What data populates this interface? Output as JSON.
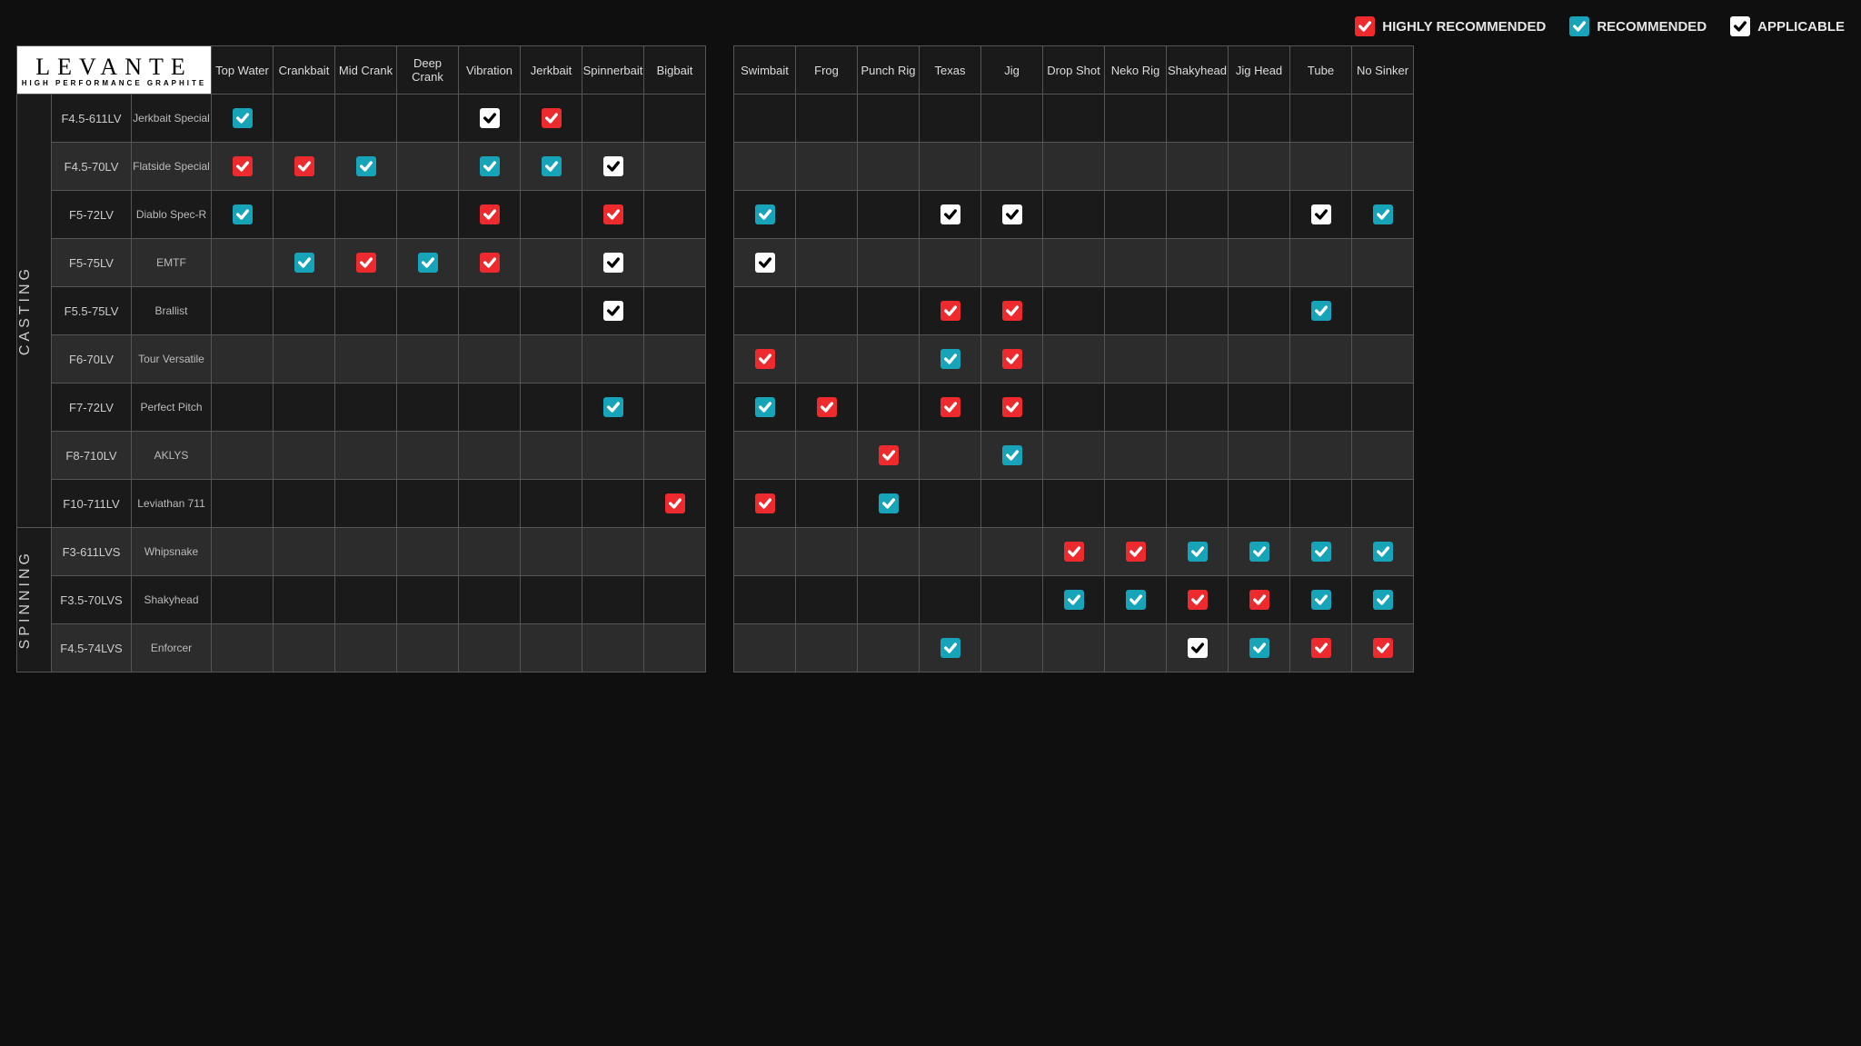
{
  "brand": {
    "name": "LEVANTE",
    "tagline": "HIGH PERFORMANCE GRAPHITE"
  },
  "colors": {
    "highly_recommended": "#ed2b2e",
    "recommended": "#17a3b8",
    "applicable": "#ffffff",
    "check_stroke": "#0f0f0f",
    "check_stroke_on_white": "#0f0f0f",
    "bg": "#0f0f0f",
    "row_alt": "#2c2c2c",
    "row": "#1a1a1a",
    "border": "#555555",
    "text": "#cccccc"
  },
  "legend": [
    {
      "key": "highly_recommended",
      "label": "HIGHLY RECOMMENDED"
    },
    {
      "key": "recommended",
      "label": "RECOMMENDED"
    },
    {
      "key": "applicable",
      "label": "APPLICABLE"
    }
  ],
  "columns_left": [
    "Top Water",
    "Crankbait",
    "Mid Crank",
    "Deep Crank",
    "Vibration",
    "Jerkbait",
    "Spinnerbait",
    "Bigbait"
  ],
  "columns_right": [
    "Swimbait",
    "Frog",
    "Punch Rig",
    "Texas",
    "Jig",
    "Drop Shot",
    "Neko Rig",
    "Shakyhead",
    "Jig Head",
    "Tube",
    "No Sinker"
  ],
  "categories": [
    {
      "name": "CASTING",
      "rows": [
        {
          "model": "F4.5-611LV",
          "nick": "Jerkbait Special",
          "cells_left": [
            "recommended",
            "",
            "",
            "",
            "applicable",
            "highly_recommended",
            "",
            ""
          ],
          "cells_right": [
            "",
            "",
            "",
            "",
            "",
            "",
            "",
            "",
            "",
            "",
            ""
          ]
        },
        {
          "model": "F4.5-70LV",
          "nick": "Flatside Special",
          "cells_left": [
            "highly_recommended",
            "highly_recommended",
            "recommended",
            "",
            "recommended",
            "recommended",
            "applicable",
            ""
          ],
          "cells_right": [
            "",
            "",
            "",
            "",
            "",
            "",
            "",
            "",
            "",
            "",
            ""
          ]
        },
        {
          "model": "F5-72LV",
          "nick": "Diablo Spec-R",
          "cells_left": [
            "recommended",
            "",
            "",
            "",
            "highly_recommended",
            "",
            "highly_recommended",
            ""
          ],
          "cells_right": [
            "recommended",
            "",
            "",
            "applicable",
            "applicable",
            "",
            "",
            "",
            "",
            "applicable",
            "recommended"
          ]
        },
        {
          "model": "F5-75LV",
          "nick": "EMTF",
          "cells_left": [
            "",
            "recommended",
            "highly_recommended",
            "recommended",
            "highly_recommended",
            "",
            "applicable",
            ""
          ],
          "cells_right": [
            "applicable",
            "",
            "",
            "",
            "",
            "",
            "",
            "",
            "",
            "",
            ""
          ]
        },
        {
          "model": "F5.5-75LV",
          "nick": "Brallist",
          "cells_left": [
            "",
            "",
            "",
            "",
            "",
            "",
            "applicable",
            ""
          ],
          "cells_right": [
            "",
            "",
            "",
            "highly_recommended",
            "highly_recommended",
            "",
            "",
            "",
            "",
            "recommended",
            ""
          ]
        },
        {
          "model": "F6-70LV",
          "nick": "Tour Versatile",
          "cells_left": [
            "",
            "",
            "",
            "",
            "",
            "",
            "",
            ""
          ],
          "cells_right": [
            "highly_recommended",
            "",
            "",
            "recommended",
            "highly_recommended",
            "",
            "",
            "",
            "",
            "",
            ""
          ]
        },
        {
          "model": "F7-72LV",
          "nick": "Perfect Pitch",
          "cells_left": [
            "",
            "",
            "",
            "",
            "",
            "",
            "recommended",
            ""
          ],
          "cells_right": [
            "recommended",
            "highly_recommended",
            "",
            "highly_recommended",
            "highly_recommended",
            "",
            "",
            "",
            "",
            "",
            ""
          ]
        },
        {
          "model": "F8-710LV",
          "nick": "AKLYS",
          "cells_left": [
            "",
            "",
            "",
            "",
            "",
            "",
            "",
            ""
          ],
          "cells_right": [
            "",
            "",
            "highly_recommended",
            "",
            "recommended",
            "",
            "",
            "",
            "",
            "",
            ""
          ]
        },
        {
          "model": "F10-711LV",
          "nick": "Leviathan 711",
          "cells_left": [
            "",
            "",
            "",
            "",
            "",
            "",
            "",
            "highly_recommended"
          ],
          "cells_right": [
            "highly_recommended",
            "",
            "recommended",
            "",
            "",
            "",
            "",
            "",
            "",
            "",
            ""
          ]
        }
      ]
    },
    {
      "name": "SPINNING",
      "rows": [
        {
          "model": "F3-611LVS",
          "nick": "Whipsnake",
          "cells_left": [
            "",
            "",
            "",
            "",
            "",
            "",
            "",
            ""
          ],
          "cells_right": [
            "",
            "",
            "",
            "",
            "",
            "highly_recommended",
            "highly_recommended",
            "recommended",
            "recommended",
            "recommended",
            "recommended"
          ]
        },
        {
          "model": "F3.5-70LVS",
          "nick": "Shakyhead",
          "cells_left": [
            "",
            "",
            "",
            "",
            "",
            "",
            "",
            ""
          ],
          "cells_right": [
            "",
            "",
            "",
            "",
            "",
            "recommended",
            "recommended",
            "highly_recommended",
            "highly_recommended",
            "recommended",
            "recommended"
          ]
        },
        {
          "model": "F4.5-74LVS",
          "nick": "Enforcer",
          "cells_left": [
            "",
            "",
            "",
            "",
            "",
            "",
            "",
            ""
          ],
          "cells_right": [
            "",
            "",
            "",
            "recommended",
            "",
            "",
            "",
            "applicable",
            "recommended",
            "highly_recommended",
            "highly_recommended"
          ]
        }
      ]
    }
  ]
}
